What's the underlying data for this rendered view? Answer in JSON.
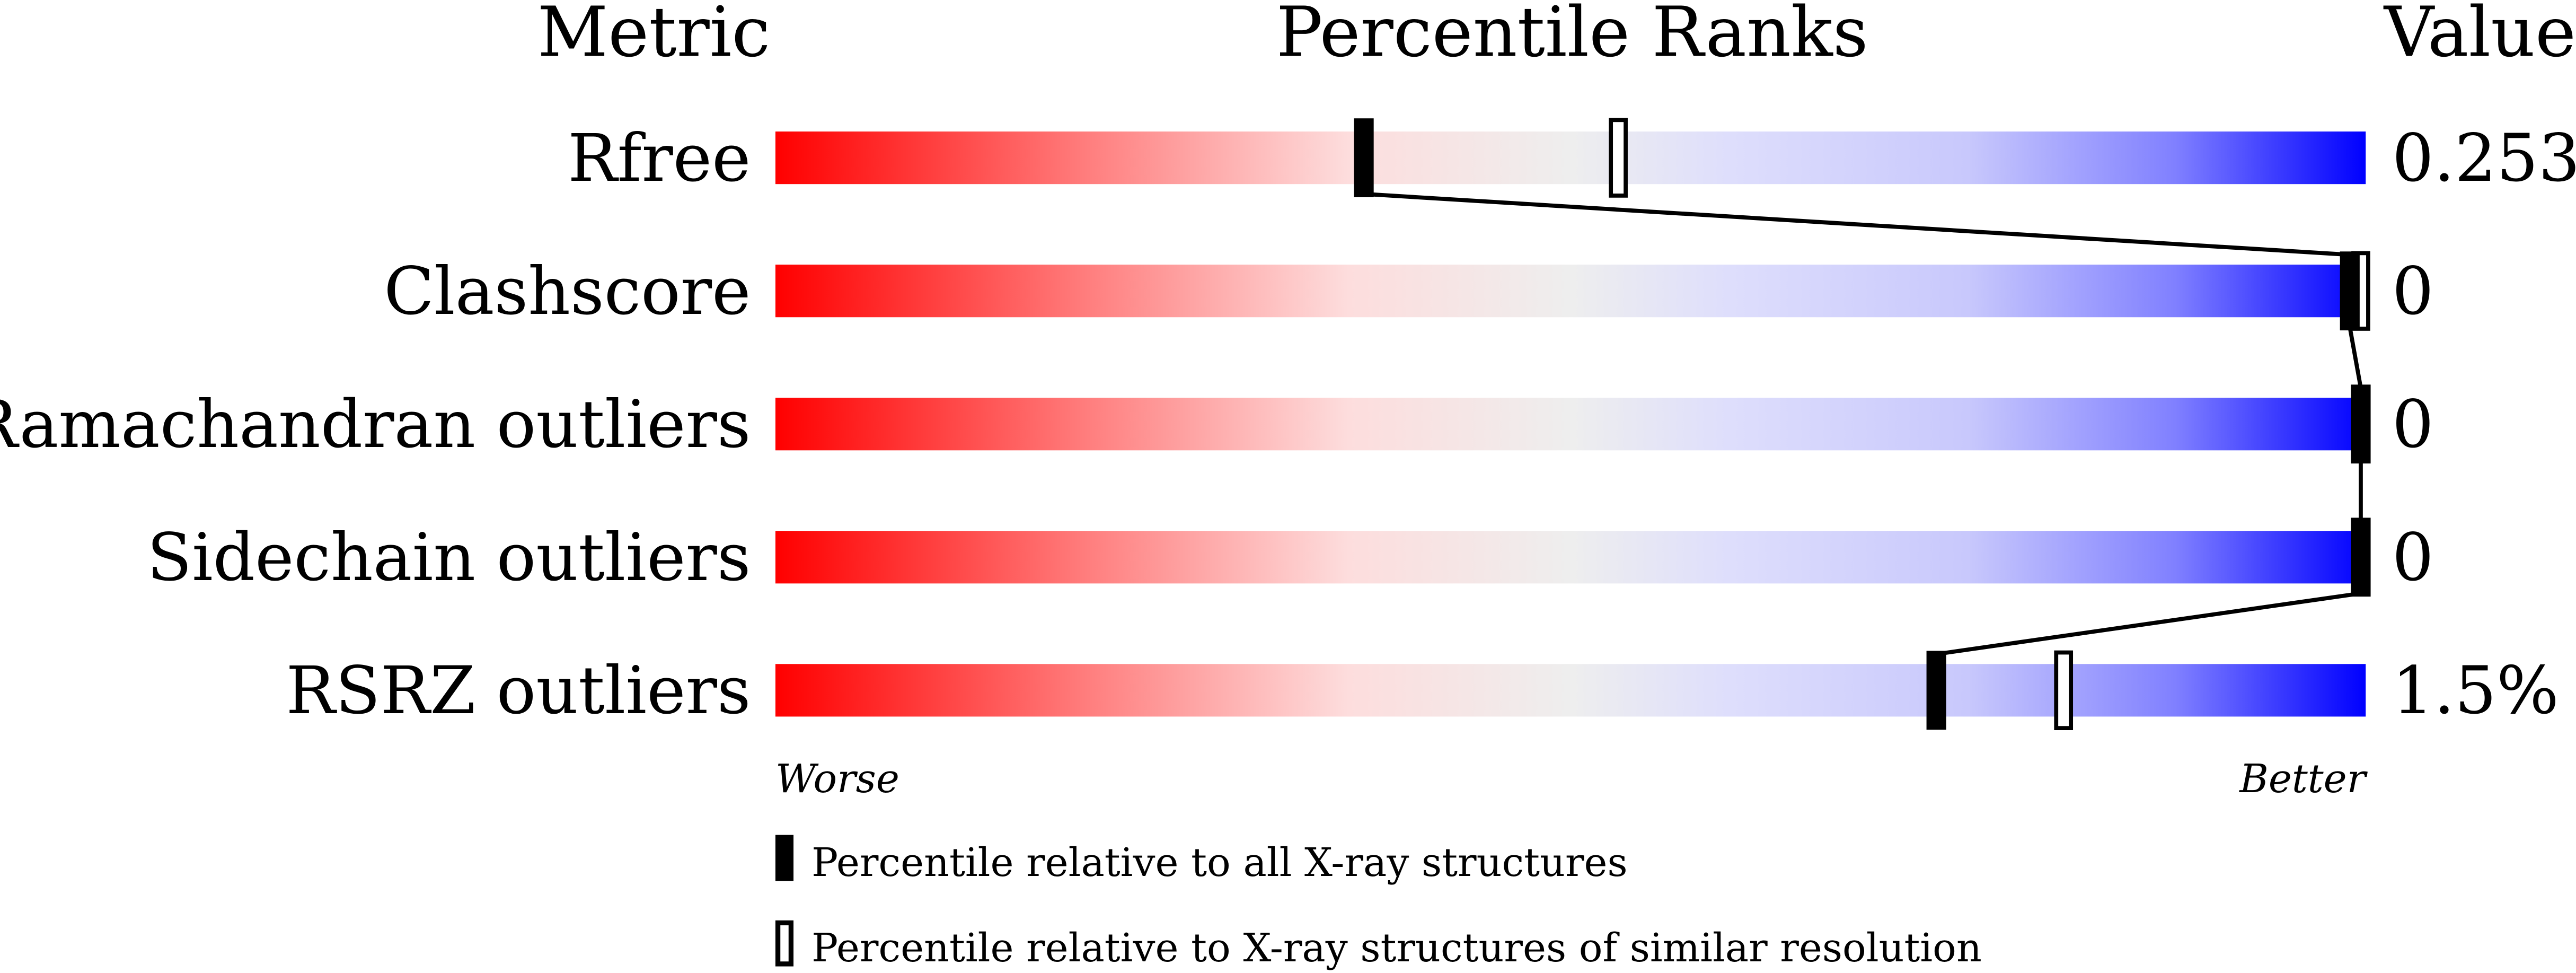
{
  "chart_data": {
    "type": "percentile-slider",
    "headers": {
      "metric": "Metric",
      "percentile": "Percentile Ranks",
      "value": "Value"
    },
    "axis": {
      "left": "Worse",
      "right": "Better",
      "range": [
        0,
        100
      ]
    },
    "gradient_colors": [
      "#ff0000",
      "#eeeeee",
      "#0000ff"
    ],
    "metrics": [
      {
        "name": "Rfree",
        "value": "0.253",
        "pct_all": 37,
        "pct_similar": 53
      },
      {
        "name": "Clashscore",
        "value": "0",
        "pct_all": 99,
        "pct_similar": 100
      },
      {
        "name": "Ramachandran outliers",
        "value": "0",
        "pct_all": 100,
        "pct_similar": null
      },
      {
        "name": "Sidechain outliers",
        "value": "0",
        "pct_all": 100,
        "pct_similar": null
      },
      {
        "name": "RSRZ outliers",
        "value": "1.5%",
        "pct_all": 73,
        "pct_similar": 81
      }
    ],
    "legend": [
      {
        "marker": "filled",
        "label": "Percentile relative to all X-ray structures"
      },
      {
        "marker": "open",
        "label": "Percentile relative to X-ray structures of similar resolution"
      }
    ]
  }
}
